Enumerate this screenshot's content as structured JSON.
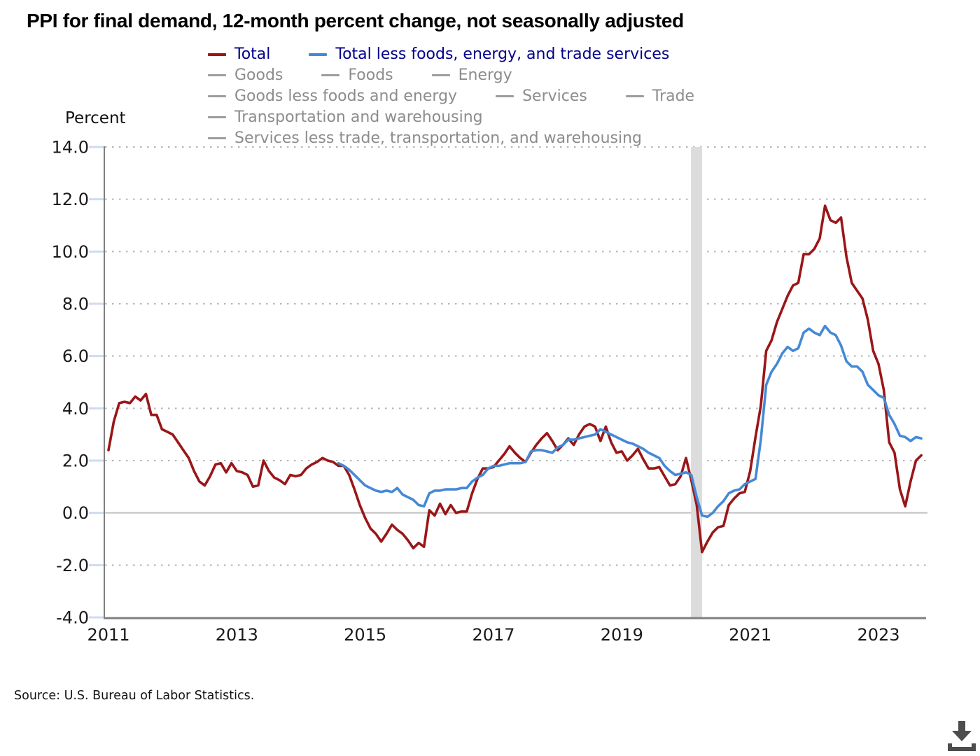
{
  "title": "PPI for final demand, 12-month percent change, not seasonally adjusted",
  "y_axis_heading": "Percent",
  "source": "Source: U.S. Bureau of Labor Statistics.",
  "colors": {
    "total_line": "#9A1618",
    "core_line": "#4589D6",
    "active_legend_text": "#00008B",
    "inactive_legend_text": "#8C8C8C",
    "recession_band": "#DCDCDC",
    "axis_line": "#7F7F7F",
    "zero_line": "#C1C1C1",
    "gridline_dots": "#B5B5B5",
    "tick_mark": "#CFDCF0",
    "download_icon": "#4D4D4D"
  },
  "legend": {
    "items": [
      {
        "label": "Total",
        "state": "active"
      },
      {
        "label": "Total less foods, energy, and trade services",
        "state": "active"
      },
      {
        "label": "Goods",
        "state": "inactive"
      },
      {
        "label": "Foods",
        "state": "inactive"
      },
      {
        "label": "Energy",
        "state": "inactive"
      },
      {
        "label": "Goods less foods and energy",
        "state": "inactive"
      },
      {
        "label": "Services",
        "state": "inactive"
      },
      {
        "label": "Trade",
        "state": "inactive"
      },
      {
        "label": "Transportation and warehousing",
        "state": "inactive"
      },
      {
        "label": "Services less trade, transportation, and warehousing",
        "state": "inactive"
      }
    ]
  },
  "chart_data": {
    "type": "line",
    "title": "PPI for final demand, 12-month percent change, not seasonally adjusted",
    "xlabel": "",
    "ylabel": "Percent",
    "ylim": [
      -4.0,
      14.0
    ],
    "grid": "dotted-horizontal",
    "legend_position": "top",
    "y_ticks": [
      14,
      12,
      10,
      8,
      6,
      4,
      2,
      0,
      -2,
      -4
    ],
    "y_tick_labels": [
      "14.0",
      "12.0",
      "10.0",
      "8.0",
      "6.0",
      "4.0",
      "2.0",
      "0.0",
      "-2.0",
      "-4.0"
    ],
    "x_tick_labels": [
      "2011",
      "2013",
      "2015",
      "2017",
      "2019",
      "2021",
      "2023"
    ],
    "recession_band": {
      "from": "2020-02",
      "to": "2020-04"
    },
    "series": [
      {
        "name": "Total",
        "color": "#9A1618",
        "frequency": "monthly",
        "start": "2011-01",
        "values": [
          2.4,
          3.5,
          4.2,
          4.25,
          4.2,
          4.45,
          4.3,
          4.55,
          3.75,
          3.75,
          3.2,
          3.1,
          3.0,
          2.7,
          2.4,
          2.1,
          1.6,
          1.2,
          1.05,
          1.4,
          1.85,
          1.9,
          1.55,
          1.9,
          1.6,
          1.55,
          1.45,
          1.0,
          1.05,
          2.0,
          1.6,
          1.35,
          1.25,
          1.1,
          1.45,
          1.4,
          1.45,
          1.7,
          1.85,
          1.95,
          2.1,
          2.0,
          1.95,
          1.8,
          1.8,
          1.45,
          0.9,
          0.3,
          -0.2,
          -0.6,
          -0.8,
          -1.1,
          -0.8,
          -0.45,
          -0.65,
          -0.8,
          -1.05,
          -1.35,
          -1.15,
          -1.3,
          0.1,
          -0.1,
          0.35,
          -0.05,
          0.3,
          0.0,
          0.05,
          0.05,
          0.75,
          1.3,
          1.7,
          1.7,
          1.75,
          2.0,
          2.25,
          2.55,
          2.3,
          2.1,
          1.95,
          2.3,
          2.6,
          2.85,
          3.05,
          2.75,
          2.4,
          2.6,
          2.85,
          2.6,
          3.0,
          3.3,
          3.4,
          3.3,
          2.75,
          3.3,
          2.7,
          2.3,
          2.35,
          2.0,
          2.2,
          2.45,
          2.05,
          1.7,
          1.7,
          1.75,
          1.4,
          1.05,
          1.1,
          1.4,
          2.1,
          1.25,
          0.3,
          -1.5,
          -1.1,
          -0.75,
          -0.55,
          -0.5,
          0.3,
          0.55,
          0.75,
          0.8,
          1.6,
          2.9,
          4.1,
          6.2,
          6.6,
          7.3,
          7.8,
          8.3,
          8.7,
          8.8,
          9.9,
          9.9,
          10.1,
          10.5,
          11.75,
          11.2,
          11.1,
          11.3,
          9.8,
          8.8,
          8.5,
          8.2,
          7.4,
          6.2,
          5.7,
          4.7,
          2.7,
          2.3,
          0.9,
          0.25,
          1.2,
          2.0,
          2.2
        ]
      },
      {
        "name": "Total less foods, energy, and trade services",
        "color": "#4589D6",
        "frequency": "monthly",
        "start": "2014-08",
        "values": [
          1.9,
          1.8,
          1.65,
          1.45,
          1.25,
          1.05,
          0.95,
          0.85,
          0.8,
          0.85,
          0.8,
          0.95,
          0.7,
          0.6,
          0.5,
          0.3,
          0.25,
          0.75,
          0.85,
          0.85,
          0.9,
          0.9,
          0.9,
          0.95,
          0.95,
          1.2,
          1.35,
          1.45,
          1.7,
          1.8,
          1.8,
          1.85,
          1.9,
          1.9,
          1.9,
          1.95,
          2.35,
          2.4,
          2.4,
          2.35,
          2.3,
          2.5,
          2.6,
          2.8,
          2.8,
          2.85,
          2.9,
          2.95,
          3.0,
          3.2,
          3.1,
          3.0,
          2.9,
          2.8,
          2.7,
          2.65,
          2.55,
          2.45,
          2.3,
          2.2,
          2.1,
          1.8,
          1.6,
          1.45,
          1.5,
          1.55,
          1.45,
          0.6,
          -0.1,
          -0.15,
          0.0,
          0.25,
          0.45,
          0.75,
          0.85,
          0.9,
          1.1,
          1.2,
          1.3,
          2.8,
          4.9,
          5.4,
          5.7,
          6.1,
          6.35,
          6.2,
          6.3,
          6.9,
          7.05,
          6.9,
          6.8,
          7.15,
          6.9,
          6.8,
          6.4,
          5.8,
          5.6,
          5.6,
          5.4,
          4.9,
          4.7,
          4.5,
          4.4,
          3.75,
          3.4,
          2.95,
          2.9,
          2.75,
          2.9,
          2.85
        ]
      }
    ]
  }
}
